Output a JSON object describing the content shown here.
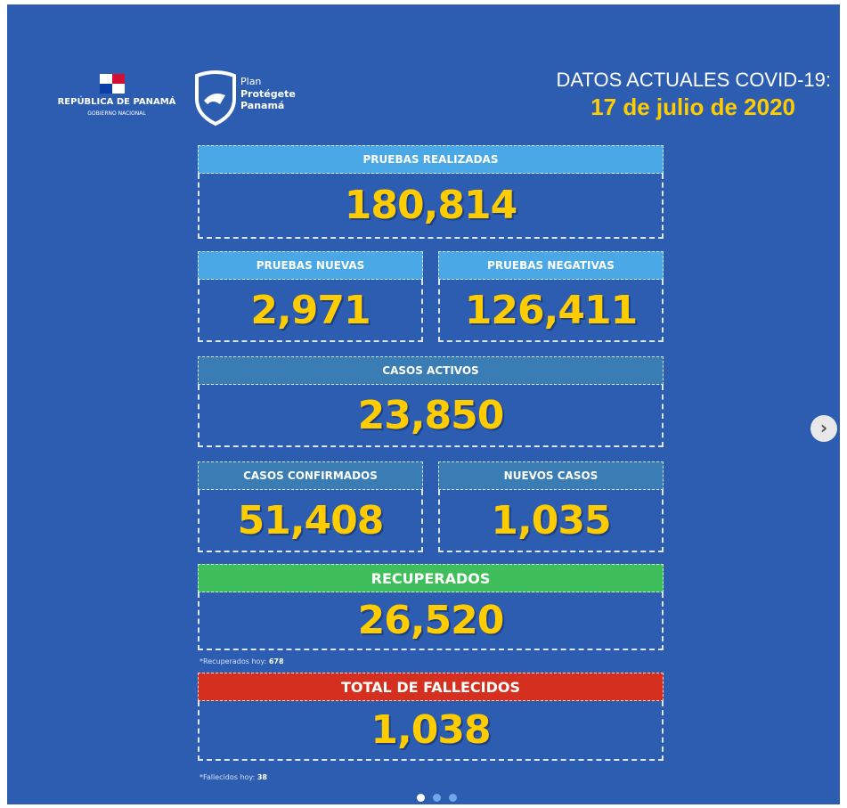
{
  "header": {
    "government": "REPÚBLICA DE PANAMÁ",
    "government_sub": "GOBIERNO NACIONAL",
    "plan": "Plan",
    "plan_name_1": "Protégete",
    "plan_name_2": "Panamá",
    "title": "DATOS ACTUALES COVID-19:",
    "date": "17 de julio de 2020"
  },
  "stats": [
    {
      "label": "PRUEBAS REALIZADAS",
      "value": "180,814"
    },
    {
      "label": "PRUEBAS NUEVAS",
      "value": "2,971"
    },
    {
      "label": "PRUEBAS NEGATIVAS",
      "value": "126,411"
    },
    {
      "label": "CASOS ACTIVOS",
      "value": "23,850"
    },
    {
      "label": "CASOS CONFIRMADOS",
      "value": "51,408"
    },
    {
      "label": "NUEVOS CASOS",
      "value": "1,035"
    },
    {
      "label": "RECUPERADOS",
      "value": "26,520"
    },
    {
      "label": "TOTAL DE FALLECIDOS",
      "value": "1,038"
    }
  ],
  "notes": [
    {
      "label": "*Recuperados hoy:",
      "value": "678"
    },
    {
      "label": "*Fallecidos hoy:",
      "value": "38"
    }
  ]
}
